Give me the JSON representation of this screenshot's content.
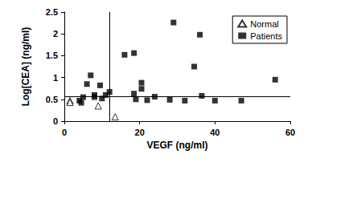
{
  "chart_data": {
    "type": "scatter",
    "x_label": "VEGF (ng/ml)",
    "y_label": "Log[CEA] (ng/ml)",
    "xlim": [
      0,
      60
    ],
    "xticks": [
      0,
      20,
      40,
      60
    ],
    "ylim": [
      0,
      2.5
    ],
    "yticks": [
      0,
      0.5,
      1,
      1.5,
      2,
      2.5
    ],
    "grid": false,
    "legend": "upper right",
    "vline": 12,
    "hline": 0.57,
    "series": [
      {
        "name": "Normal",
        "color": "#000000",
        "marker": "open-triangle",
        "x": [
          1.5,
          1.5,
          9,
          13.5
        ],
        "values": [
          0.47,
          0.43,
          0.35,
          0.1
        ]
      },
      {
        "name": "Patients",
        "color": "#000000",
        "marker": "square",
        "x": [
          4,
          4.5,
          5,
          6,
          7,
          8,
          8,
          9.5,
          10,
          11,
          12,
          16,
          18.5,
          18.5,
          19,
          20.5,
          20.5,
          22,
          24,
          28,
          29,
          32,
          34.5,
          36,
          36.5,
          40,
          47,
          56
        ],
        "values": [
          0.47,
          0.42,
          0.55,
          0.85,
          1.05,
          0.6,
          0.55,
          0.82,
          0.52,
          0.6,
          0.67,
          1.52,
          1.56,
          0.63,
          0.5,
          0.88,
          0.74,
          0.48,
          0.56,
          0.49,
          2.26,
          0.47,
          1.25,
          1.98,
          0.58,
          0.47,
          0.47,
          0.95
        ]
      }
    ]
  }
}
